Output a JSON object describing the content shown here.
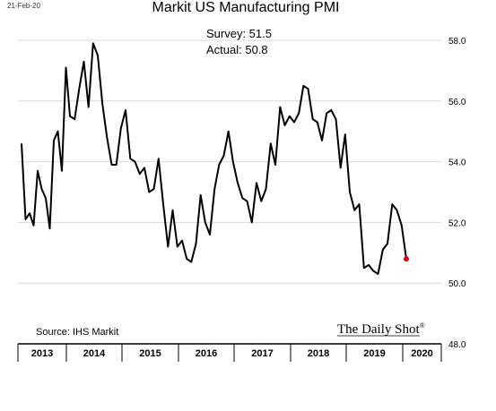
{
  "header": {
    "date": "21-Feb-20",
    "title": "Markit US Manufacturing PMI"
  },
  "annotations": {
    "survey": "Survey: 51.5",
    "actual": "Actual:  50.8"
  },
  "footer": {
    "source": "Source: IHS Markit",
    "brand": "The Daily Shot",
    "brand_mark": "®"
  },
  "colors": {
    "line": "#000000",
    "grid": "#d9d9d9",
    "last_point": "#e3000f",
    "axis": "#000000"
  },
  "chart_data": {
    "type": "line",
    "title": "Markit US Manufacturing PMI",
    "xlabel": "",
    "ylabel": "",
    "ylim": [
      48.0,
      58.0
    ],
    "y_ticks": [
      "58.0",
      "56.0",
      "54.0",
      "52.0",
      "50.0",
      "48.0"
    ],
    "gridlines": [
      50,
      52,
      54,
      56,
      58
    ],
    "x_labels": [
      "2013",
      "2014",
      "2015",
      "2016",
      "2017",
      "2018",
      "2019",
      "2020"
    ],
    "x_start": "2013-01",
    "series": [
      {
        "values": [
          54.6,
          52.1,
          52.3,
          51.9,
          53.7,
          53.1,
          52.8,
          51.8,
          54.7,
          55.0,
          53.7,
          57.1,
          55.5,
          55.4,
          56.4,
          57.3,
          55.8,
          57.9,
          57.5,
          55.9,
          54.8,
          53.9,
          53.9,
          55.1,
          55.7,
          54.1,
          54.0,
          53.6,
          53.8,
          53.0,
          53.1,
          54.1,
          52.6,
          51.2,
          52.4,
          51.2,
          51.4,
          50.8,
          50.7,
          51.3,
          52.9,
          52.0,
          51.6,
          53.1,
          53.9,
          54.2,
          55.0,
          54.0,
          53.3,
          52.8,
          52.7,
          52.0,
          53.3,
          52.7,
          53.1,
          54.6,
          53.9,
          55.8,
          55.2,
          55.5,
          55.3,
          55.6,
          56.5,
          56.4,
          55.4,
          55.3,
          54.7,
          55.6,
          55.7,
          55.4,
          53.8,
          54.9,
          53.0,
          52.4,
          52.6,
          50.5,
          50.6,
          50.4,
          50.3,
          51.1,
          51.3,
          52.6,
          52.4,
          51.9,
          50.8
        ],
        "last_point_highlight": true
      }
    ],
    "grid": true,
    "legend": "none"
  }
}
